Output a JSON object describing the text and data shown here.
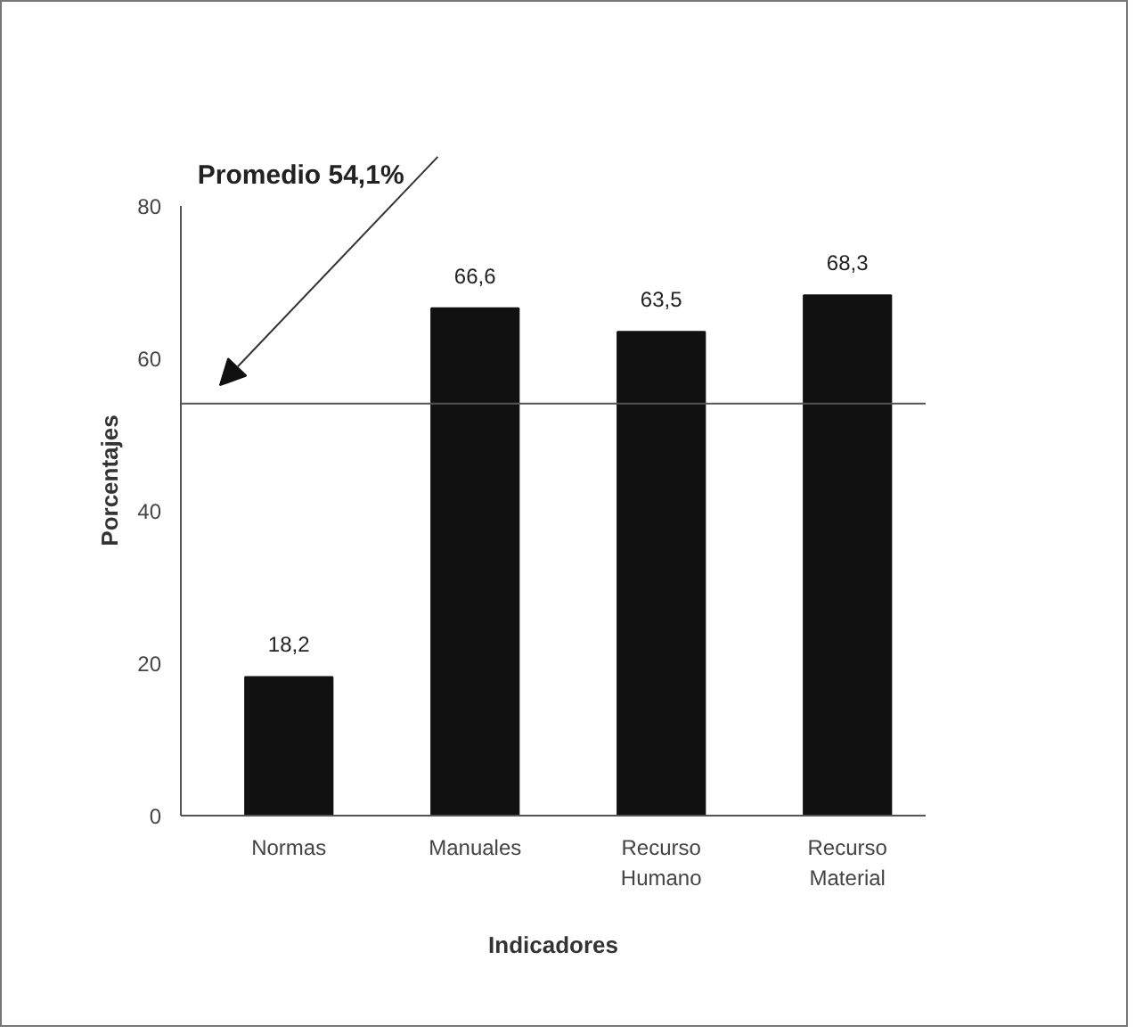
{
  "chart_data": {
    "type": "bar",
    "xlabel": "Indicadores",
    "ylabel": "Porcentajes",
    "categories": [
      "Normas",
      "Manuales",
      "Recurso\nHumano",
      "Recurso\nMaterial"
    ],
    "values": [
      18.2,
      66.6,
      63.5,
      68.3
    ],
    "value_labels": [
      "18,2",
      "66,6",
      "63,5",
      "68,3"
    ],
    "color": "#111111",
    "ylim": [
      0,
      80
    ],
    "yticks": [
      0,
      20,
      40,
      60,
      80
    ],
    "grid": false,
    "annotations": [
      "Promedio 54,1%"
    ],
    "ref_lines": [
      {
        "axis": "y",
        "value": 54.1,
        "color": "#555555"
      }
    ]
  }
}
